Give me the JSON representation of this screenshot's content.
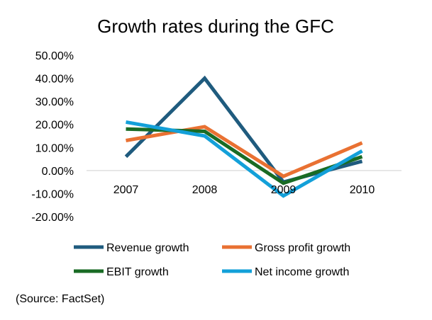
{
  "chart_data": {
    "type": "line",
    "title": "Growth rates during the GFC",
    "categories": [
      "2007",
      "2008",
      "2009",
      "2010"
    ],
    "ylim": [
      -20,
      50
    ],
    "yticks": [
      50,
      40,
      30,
      20,
      10,
      0,
      -10,
      -20
    ],
    "ytick_labels": [
      "50.00%",
      "40.00%",
      "30.00%",
      "20.00%",
      "10.00%",
      "0.00%",
      "-10.00%",
      "-20.00%"
    ],
    "series": [
      {
        "name": "Revenue growth",
        "color": "#1f5b7e",
        "values": [
          6,
          40,
          -5,
          4
        ]
      },
      {
        "name": "Gross profit growth",
        "color": "#e97132",
        "values": [
          13,
          19,
          -2.5,
          12
        ]
      },
      {
        "name": "EBIT growth",
        "color": "#196b24",
        "values": [
          18,
          17,
          -5.5,
          6
        ]
      },
      {
        "name": "Net income growth",
        "color": "#13a0d9",
        "values": [
          21,
          15,
          -11,
          8.5
        ]
      }
    ],
    "legend_position": "bottom"
  },
  "footer": {
    "source": "(Source: FactSet)"
  }
}
